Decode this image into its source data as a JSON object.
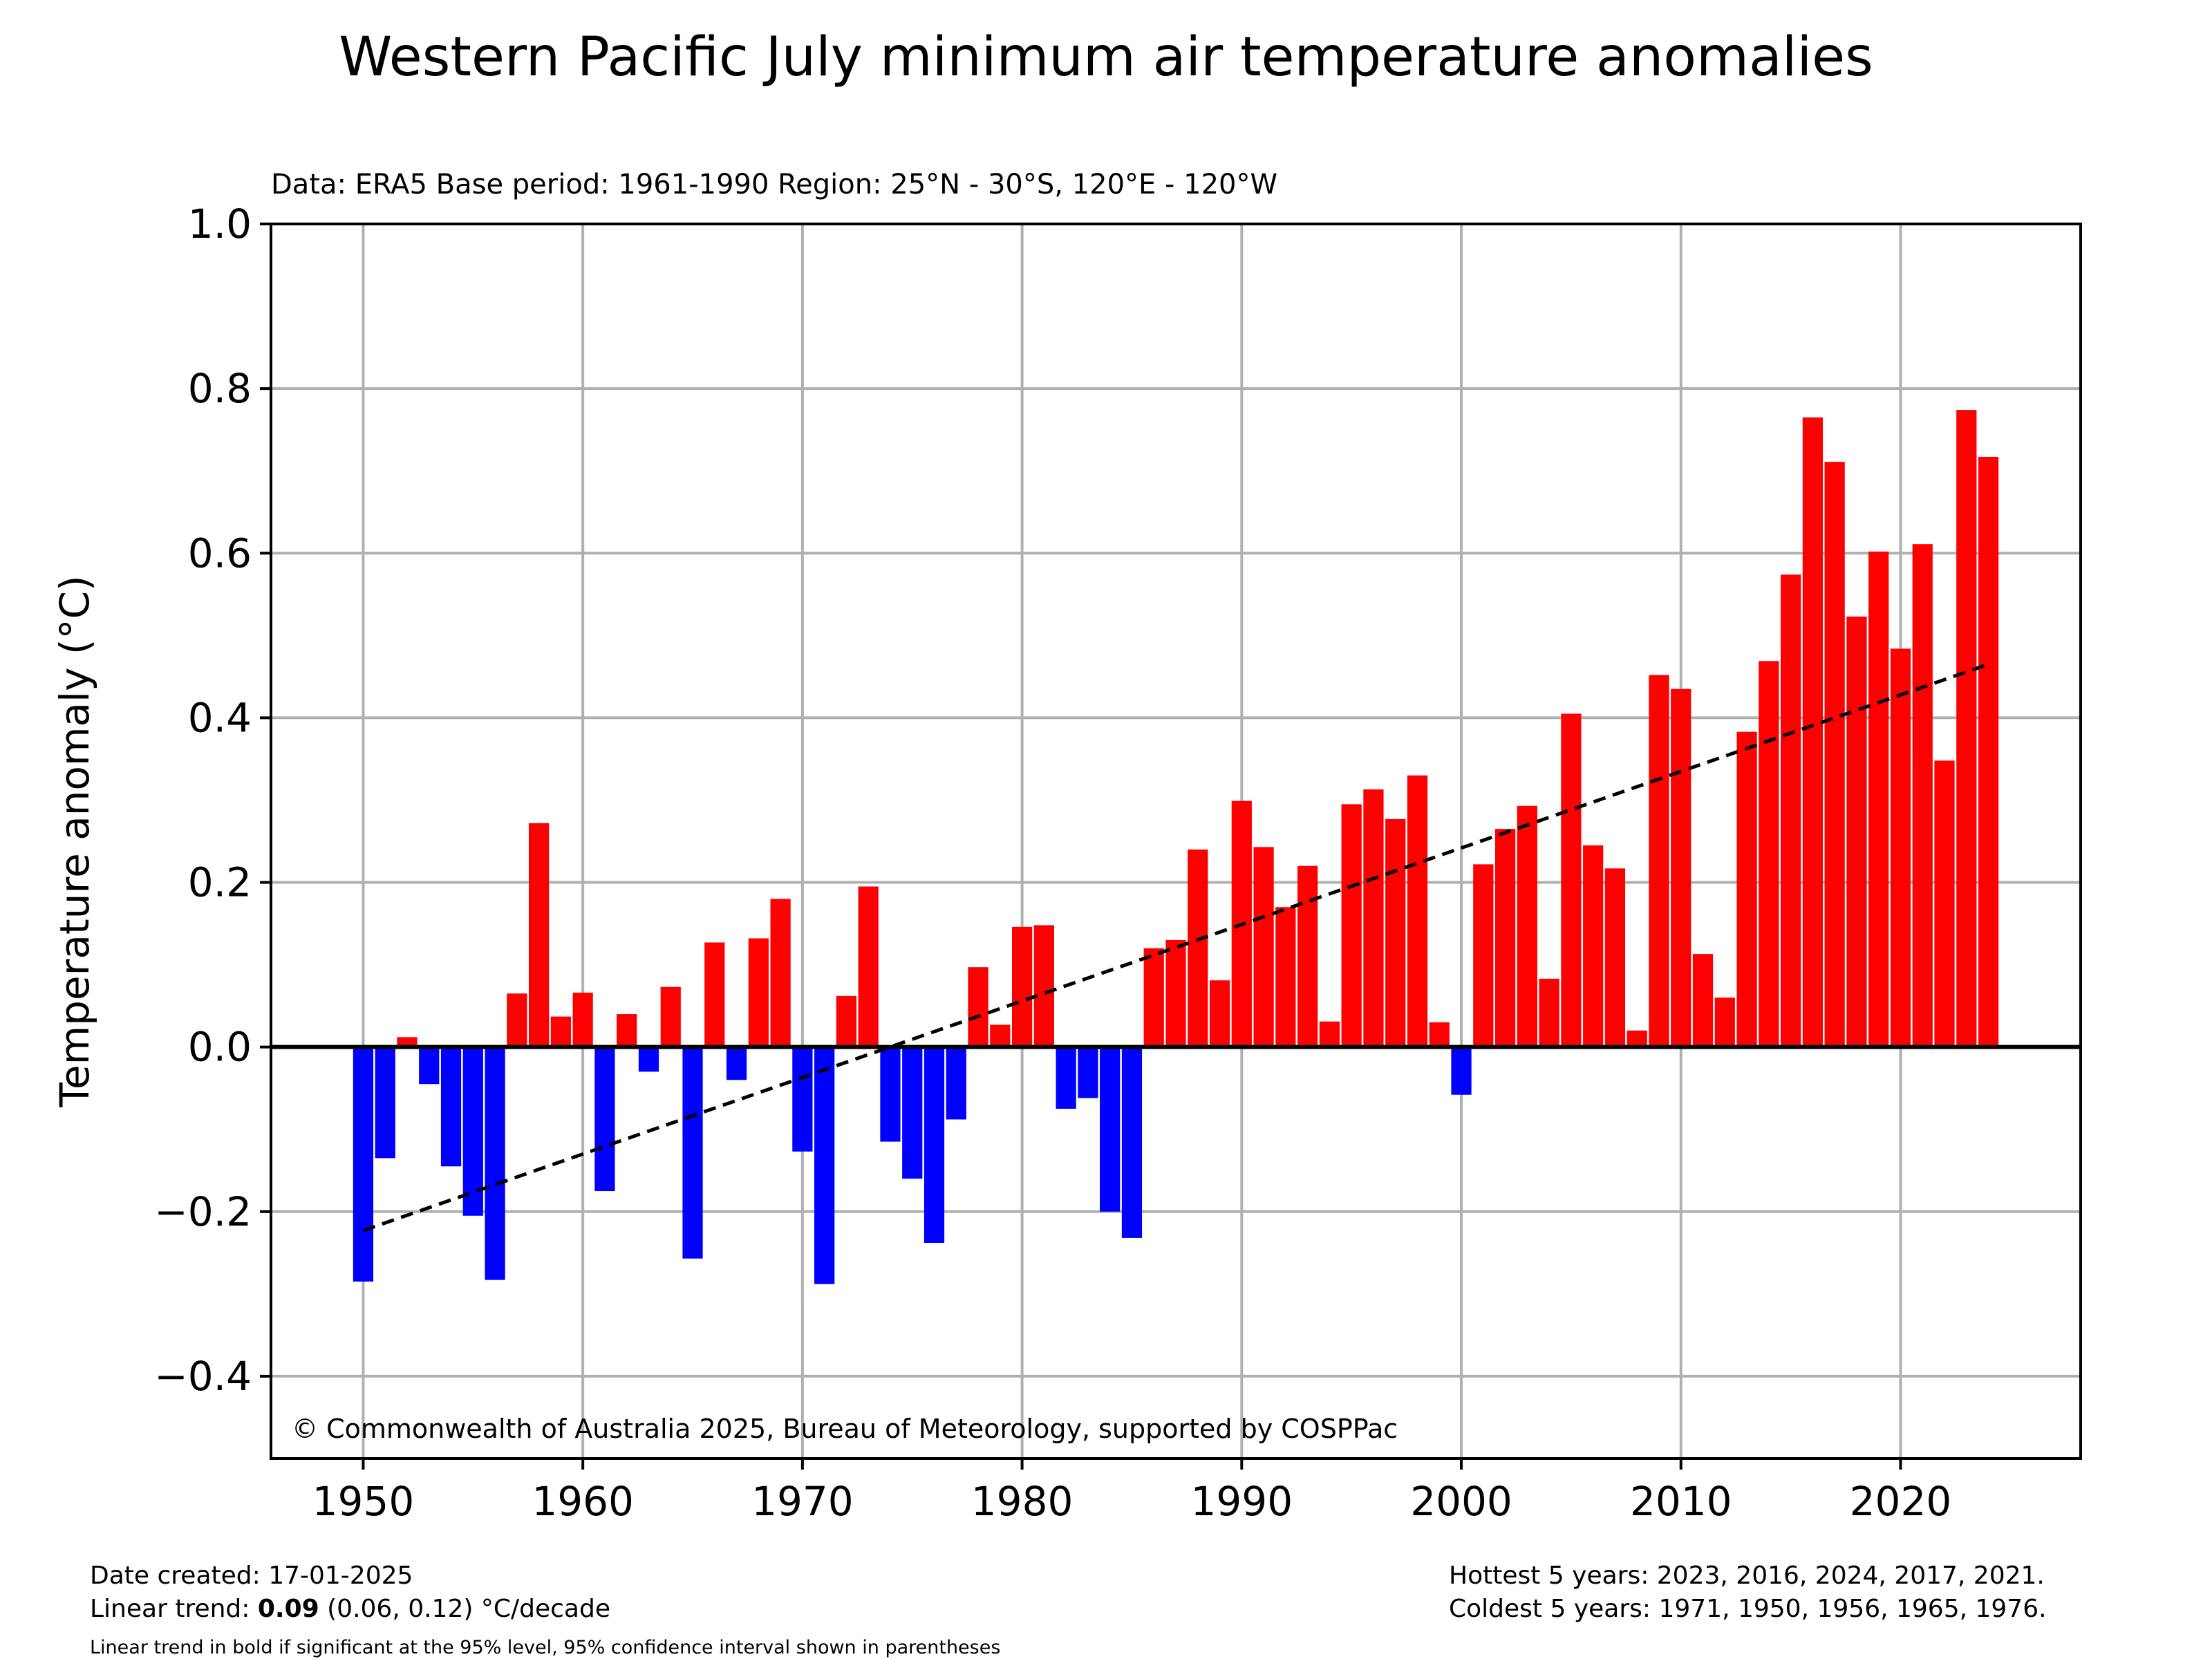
{
  "title": "Western Pacific July minimum air temperature anomalies",
  "subtitle": "Data: ERA5  Base period: 1961-1990  Region: 25°N - 30°S, 120°E - 120°W",
  "copyright": "© Commonwealth of Australia 2025, Bureau of Meteorology, supported by COSPPac",
  "footer": {
    "date_created": "Date created: 17-01-2025",
    "trend_prefix": "Linear trend: ",
    "trend_value": "0.09",
    "trend_suffix": " (0.06, 0.12) °C/decade",
    "note": "Linear trend in bold if significant at the 95% level, 95% confidence interval shown in parentheses",
    "hottest": "Hottest 5 years: 2023, 2016, 2024, 2017, 2021.",
    "coldest": "Coldest 5 years: 1971, 1950, 1956, 1965, 1976."
  },
  "colors": {
    "positive": "#ff0000",
    "negative": "#0000ff",
    "trend": "#000000",
    "grid": "#b0b0b0"
  },
  "chart_data": {
    "type": "bar",
    "title": "Western Pacific July minimum air temperature anomalies",
    "xlabel": "",
    "ylabel": "Temperature anomaly (°C)",
    "xlim": [
      1945.8,
      2028.2
    ],
    "ylim": [
      -0.5,
      1.0
    ],
    "xticks": [
      1950,
      1960,
      1970,
      1980,
      1990,
      2000,
      2010,
      2020
    ],
    "yticks": [
      -0.4,
      -0.2,
      0.0,
      0.2,
      0.4,
      0.6,
      0.8,
      1.0
    ],
    "ytick_labels": [
      "−0.4",
      "−0.2",
      "0.0",
      "0.2",
      "0.4",
      "0.6",
      "0.8",
      "1.0"
    ],
    "grid": true,
    "x": [
      1950,
      1951,
      1952,
      1953,
      1954,
      1955,
      1956,
      1957,
      1958,
      1959,
      1960,
      1961,
      1962,
      1963,
      1964,
      1965,
      1966,
      1967,
      1968,
      1969,
      1970,
      1971,
      1972,
      1973,
      1974,
      1975,
      1976,
      1977,
      1978,
      1979,
      1980,
      1981,
      1982,
      1983,
      1984,
      1985,
      1986,
      1987,
      1988,
      1989,
      1990,
      1991,
      1992,
      1993,
      1994,
      1995,
      1996,
      1997,
      1998,
      1999,
      2000,
      2001,
      2002,
      2003,
      2004,
      2005,
      2006,
      2007,
      2008,
      2009,
      2010,
      2011,
      2012,
      2013,
      2014,
      2015,
      2016,
      2017,
      2018,
      2019,
      2020,
      2021,
      2022,
      2023,
      2024
    ],
    "values": [
      -0.285,
      -0.135,
      0.012,
      -0.045,
      -0.145,
      -0.205,
      -0.283,
      0.065,
      0.272,
      0.037,
      0.066,
      -0.175,
      0.04,
      -0.03,
      0.073,
      -0.257,
      0.127,
      -0.04,
      0.132,
      0.18,
      -0.127,
      -0.288,
      0.062,
      0.195,
      -0.115,
      -0.16,
      -0.238,
      -0.088,
      0.097,
      0.027,
      0.146,
      0.148,
      -0.075,
      -0.062,
      -0.2,
      -0.232,
      0.12,
      0.13,
      0.24,
      0.081,
      0.299,
      0.243,
      0.17,
      0.22,
      0.031,
      0.295,
      0.313,
      0.277,
      0.33,
      0.03,
      -0.058,
      0.222,
      0.265,
      0.293,
      0.083,
      0.405,
      0.245,
      0.217,
      0.02,
      0.452,
      0.435,
      0.113,
      0.06,
      0.383,
      0.469,
      0.574,
      0.765,
      0.711,
      0.523,
      0.602,
      0.484,
      0.611,
      0.348,
      0.774,
      0.717
    ],
    "trend_line": {
      "x": [
        1950,
        2024
      ],
      "y": [
        -0.223,
        0.465
      ],
      "style": "dashed"
    }
  }
}
